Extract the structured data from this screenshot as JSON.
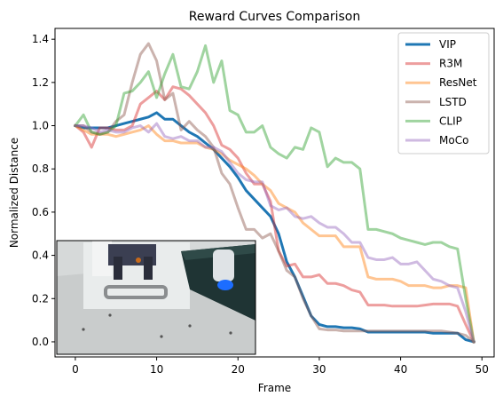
{
  "chart_data": {
    "type": "line",
    "title": "Reward Curves Comparison",
    "xlabel": "Frame",
    "ylabel": "Normalized Distance",
    "xlim": [
      -2.5,
      51.5
    ],
    "ylim": [
      -0.07,
      1.45
    ],
    "xticks": [
      0,
      10,
      20,
      30,
      40,
      50
    ],
    "yticks": [
      0.0,
      0.2,
      0.4,
      0.6,
      0.8,
      1.0,
      1.2,
      1.4
    ],
    "grid": false,
    "legend_position": "top-right",
    "inset": "robot-gripper-photo",
    "series": [
      {
        "name": "VIP",
        "color": "#1f77b4",
        "alpha": 1.0,
        "values": [
          1.0,
          0.99,
          0.99,
          0.99,
          0.99,
          1.0,
          1.01,
          1.02,
          1.03,
          1.04,
          1.06,
          1.03,
          1.03,
          1.0,
          0.97,
          0.95,
          0.92,
          0.89,
          0.85,
          0.81,
          0.76,
          0.7,
          0.66,
          0.62,
          0.58,
          0.5,
          0.37,
          0.3,
          0.21,
          0.12,
          0.08,
          0.07,
          0.07,
          0.065,
          0.065,
          0.06,
          0.045,
          0.045,
          0.045,
          0.045,
          0.045,
          0.045,
          0.045,
          0.045,
          0.04,
          0.04,
          0.04,
          0.04,
          0.01,
          0.0
        ]
      },
      {
        "name": "R3M",
        "color": "#d62728",
        "alpha": 0.45,
        "values": [
          1.0,
          0.97,
          0.9,
          0.99,
          0.99,
          0.98,
          0.98,
          1.0,
          1.1,
          1.13,
          1.16,
          1.12,
          1.18,
          1.17,
          1.14,
          1.1,
          1.06,
          1.0,
          0.91,
          0.89,
          0.85,
          0.78,
          0.73,
          0.73,
          0.65,
          0.42,
          0.35,
          0.36,
          0.3,
          0.3,
          0.31,
          0.27,
          0.27,
          0.26,
          0.24,
          0.23,
          0.17,
          0.17,
          0.17,
          0.165,
          0.165,
          0.165,
          0.165,
          0.17,
          0.175,
          0.175,
          0.175,
          0.165,
          0.08,
          0.0
        ]
      },
      {
        "name": "ResNet",
        "color": "#ff7f0e",
        "alpha": 0.45,
        "values": [
          1.0,
          0.98,
          0.96,
          0.96,
          0.96,
          0.95,
          0.96,
          0.97,
          0.98,
          1.0,
          0.96,
          0.93,
          0.93,
          0.92,
          0.92,
          0.92,
          0.9,
          0.89,
          0.87,
          0.84,
          0.82,
          0.8,
          0.77,
          0.73,
          0.7,
          0.64,
          0.62,
          0.6,
          0.55,
          0.52,
          0.49,
          0.49,
          0.49,
          0.44,
          0.44,
          0.44,
          0.3,
          0.29,
          0.29,
          0.29,
          0.28,
          0.26,
          0.26,
          0.26,
          0.25,
          0.25,
          0.26,
          0.26,
          0.25,
          0.0
        ]
      },
      {
        "name": "LSTD",
        "color": "#8c564b",
        "alpha": 0.45,
        "values": [
          1.0,
          1.0,
          0.97,
          0.96,
          0.97,
          1.02,
          1.05,
          1.2,
          1.33,
          1.38,
          1.3,
          1.12,
          1.15,
          0.98,
          1.02,
          0.98,
          0.95,
          0.9,
          0.78,
          0.73,
          0.62,
          0.52,
          0.52,
          0.48,
          0.5,
          0.42,
          0.33,
          0.3,
          0.2,
          0.12,
          0.06,
          0.055,
          0.055,
          0.05,
          0.05,
          0.05,
          0.05,
          0.05,
          0.05,
          0.05,
          0.05,
          0.05,
          0.05,
          0.05,
          0.05,
          0.05,
          0.045,
          0.04,
          0.03,
          0.0
        ]
      },
      {
        "name": "CLIP",
        "color": "#2ca02c",
        "alpha": 0.45,
        "values": [
          1.0,
          1.05,
          0.97,
          0.96,
          0.97,
          1.0,
          1.15,
          1.16,
          1.2,
          1.25,
          1.13,
          1.24,
          1.33,
          1.18,
          1.17,
          1.25,
          1.37,
          1.2,
          1.3,
          1.07,
          1.05,
          0.97,
          0.97,
          1.0,
          0.9,
          0.87,
          0.85,
          0.9,
          0.89,
          0.99,
          0.97,
          0.81,
          0.85,
          0.83,
          0.83,
          0.8,
          0.52,
          0.52,
          0.51,
          0.5,
          0.48,
          0.47,
          0.46,
          0.45,
          0.46,
          0.46,
          0.44,
          0.43,
          0.2,
          0.0
        ]
      },
      {
        "name": "MoCo",
        "color": "#9467bd",
        "alpha": 0.45,
        "values": [
          1.0,
          1.0,
          0.99,
          0.97,
          0.98,
          0.97,
          0.97,
          0.99,
          1.0,
          0.97,
          1.01,
          0.95,
          0.94,
          0.95,
          0.93,
          0.93,
          0.9,
          0.9,
          0.88,
          0.83,
          0.78,
          0.75,
          0.74,
          0.74,
          0.63,
          0.61,
          0.62,
          0.58,
          0.57,
          0.58,
          0.55,
          0.53,
          0.53,
          0.5,
          0.46,
          0.46,
          0.39,
          0.38,
          0.38,
          0.39,
          0.36,
          0.36,
          0.37,
          0.33,
          0.29,
          0.28,
          0.26,
          0.25,
          0.14,
          0.0
        ]
      }
    ]
  }
}
